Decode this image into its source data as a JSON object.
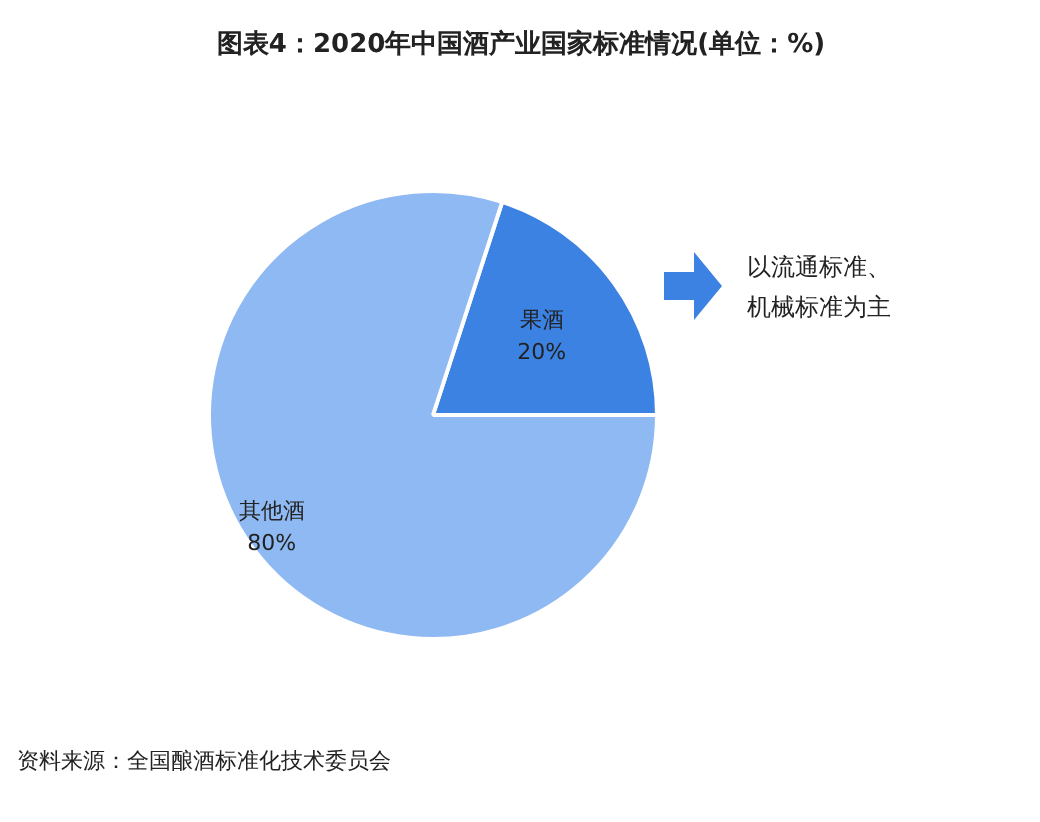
{
  "chart_data": {
    "type": "pie",
    "title": "图表4：2020年中国酒产业国家标准情况(单位：%)",
    "categories": [
      "果酒",
      "其他酒"
    ],
    "values": [
      20,
      80
    ],
    "colors": [
      "#3c82e2",
      "#8fb9f2"
    ],
    "value_labels": [
      "20%",
      "80%"
    ],
    "annotations": [
      "以流通标准、",
      "机械标准为主",
      "资料来源：全国酿酒标准化技术委员会"
    ]
  }
}
